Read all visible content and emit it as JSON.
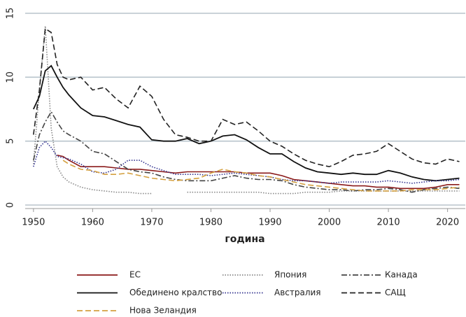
{
  "chart_data": {
    "type": "line",
    "xlabel": "година",
    "x": [
      1950,
      1951,
      1952,
      1953,
      1954,
      1955,
      1956,
      1958,
      1960,
      1962,
      1964,
      1966,
      1968,
      1970,
      1972,
      1974,
      1976,
      1978,
      1980,
      1982,
      1984,
      1986,
      1988,
      1990,
      1992,
      1994,
      1996,
      1998,
      2000,
      2002,
      2004,
      2006,
      2008,
      2010,
      2012,
      2014,
      2016,
      2018,
      2020,
      2022
    ],
    "xlim": [
      1948.6,
      2023
    ],
    "xticks": [
      1950,
      1960,
      1970,
      1980,
      1990,
      2000,
      2010,
      2020
    ],
    "ylim": [
      0,
      15
    ],
    "yticks": [
      0,
      5,
      10,
      15
    ],
    "grid": true,
    "legend": "bottom",
    "series": [
      {
        "name": "ЕС",
        "color": "#8b1a1a",
        "dash": "solid",
        "values": [
          null,
          null,
          null,
          null,
          3.9,
          3.8,
          3.5,
          3.0,
          3.0,
          3.0,
          2.9,
          2.8,
          2.8,
          2.7,
          2.6,
          2.5,
          2.6,
          2.6,
          2.6,
          2.6,
          2.6,
          2.5,
          2.5,
          2.5,
          2.3,
          2.0,
          1.9,
          1.8,
          1.7,
          1.6,
          1.5,
          1.5,
          1.4,
          1.4,
          1.3,
          1.3,
          1.3,
          1.4,
          1.6,
          1.6
        ]
      },
      {
        "name": "Япония",
        "color": "#888888",
        "dash": "dotted",
        "values": [
          3.2,
          9,
          14,
          6,
          3,
          2.2,
          1.8,
          1.4,
          1.2,
          1.1,
          1.0,
          1.0,
          0.9,
          0.9,
          null,
          null,
          1.0,
          1.0,
          1.0,
          1.0,
          1.0,
          1.0,
          1.0,
          0.9,
          0.9,
          0.9,
          1.0,
          1.0,
          1.0,
          1.1,
          1.1,
          1.1,
          1.1,
          1.1,
          1.1,
          1.1,
          1.1,
          1.1,
          1.1,
          1.1
        ]
      },
      {
        "name": "Канада",
        "color": "#444444",
        "dash": "dashdot",
        "values": [
          3.5,
          5.5,
          6.5,
          7.3,
          6.5,
          5.8,
          5.5,
          5.0,
          4.2,
          4.0,
          3.4,
          2.8,
          2.6,
          2.5,
          2.2,
          2.0,
          1.9,
          1.9,
          1.9,
          2.1,
          2.3,
          2.1,
          2.0,
          2.0,
          1.9,
          1.6,
          1.4,
          1.3,
          1.2,
          1.2,
          1.1,
          1.2,
          1.2,
          1.3,
          1.2,
          1.0,
          1.2,
          1.3,
          1.4,
          1.3
        ]
      },
      {
        "name": "Обединено кралство",
        "color": "#111111",
        "dash": "solid",
        "values": [
          7.5,
          8.5,
          10.5,
          10.9,
          10,
          9.2,
          8.6,
          7.6,
          7.0,
          6.9,
          6.6,
          6.3,
          6.1,
          5.1,
          5.0,
          5.0,
          5.2,
          4.8,
          5.0,
          5.4,
          5.5,
          5.1,
          4.5,
          4.0,
          4.0,
          3.4,
          2.9,
          2.6,
          2.5,
          2.4,
          2.5,
          2.4,
          2.4,
          2.7,
          2.5,
          2.2,
          2.0,
          1.9,
          2.0,
          2.1
        ]
      },
      {
        "name": "Австралия",
        "color": "#33338f",
        "dash": "dotted",
        "values": [
          3.0,
          4.5,
          5.0,
          4.5,
          3.8,
          3.7,
          3.6,
          3.2,
          2.6,
          2.5,
          2.8,
          3.5,
          3.5,
          3.0,
          2.7,
          2.4,
          2.4,
          2.4,
          2.3,
          2.4,
          2.5,
          2.4,
          2.3,
          2.2,
          2.0,
          1.9,
          1.9,
          1.8,
          1.7,
          1.8,
          1.8,
          1.8,
          1.8,
          1.9,
          1.8,
          1.7,
          1.8,
          1.9,
          1.9,
          2.0
        ]
      },
      {
        "name": "САЩ",
        "color": "#222222",
        "dash": "dashed",
        "values": [
          5.5,
          9,
          13.8,
          13.5,
          11,
          10,
          9.8,
          10,
          9.0,
          9.2,
          8.3,
          7.6,
          9.3,
          8.5,
          6.7,
          5.5,
          5.3,
          5.0,
          5.0,
          6.7,
          6.3,
          6.5,
          5.8,
          5.0,
          4.6,
          4.0,
          3.5,
          3.2,
          3.0,
          3.4,
          3.9,
          4.0,
          4.2,
          4.8,
          4.2,
          3.6,
          3.3,
          3.2,
          3.6,
          3.4
        ]
      },
      {
        "name": "Нова Зеландия",
        "color": "#d4a040",
        "dash": "dashed",
        "values": [
          null,
          null,
          null,
          null,
          null,
          3.5,
          3.2,
          2.8,
          2.7,
          2.4,
          2.4,
          2.5,
          2.3,
          2.1,
          2.0,
          1.9,
          2.0,
          2.1,
          2.5,
          2.8,
          2.6,
          2.5,
          2.3,
          2.2,
          2.0,
          1.8,
          1.6,
          1.5,
          1.4,
          1.3,
          1.2,
          1.1,
          1.1,
          1.1,
          1.1,
          1.2,
          1.2,
          1.2,
          1.3,
          1.4
        ]
      }
    ]
  }
}
